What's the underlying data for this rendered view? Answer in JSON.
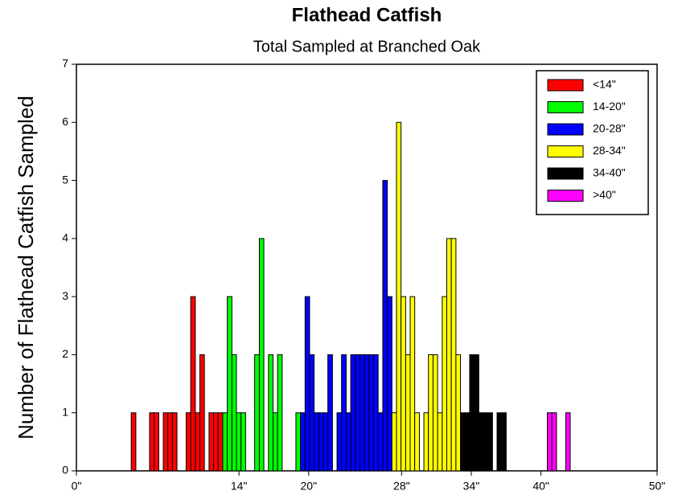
{
  "chart_data": {
    "type": "histogram",
    "title": "Flathead Catfish",
    "subtitle": "Total Sampled at Branched Oak",
    "y_label": "Number of Flathead Catfish Sampled",
    "xlim": [
      0,
      50
    ],
    "ylim": [
      0,
      7
    ],
    "xticks": [
      {
        "value": 0,
        "label": "0\""
      },
      {
        "value": 14,
        "label": "14\""
      },
      {
        "value": 20,
        "label": "20\""
      },
      {
        "value": 28,
        "label": "28\""
      },
      {
        "value": 34,
        "label": "34\""
      },
      {
        "value": 40,
        "label": "40\""
      },
      {
        "value": 50,
        "label": "50\""
      }
    ],
    "yticks": [
      0,
      1,
      2,
      3,
      4,
      5,
      6,
      7
    ],
    "legend": "top-right",
    "series": [
      {
        "name": "<14\"",
        "color": "#ff0000",
        "bins": [
          4.72,
          5.12,
          5.51,
          5.91,
          6.3,
          6.69,
          7.09,
          7.48,
          7.87,
          8.27,
          8.66,
          9.06,
          9.45,
          9.84,
          10.24,
          10.63,
          11.02,
          11.42,
          11.81,
          12.2,
          12.6
        ],
        "values": [
          1,
          0,
          0,
          0,
          1,
          1,
          0,
          1,
          1,
          1,
          0,
          0,
          1,
          3,
          1,
          2,
          0,
          1,
          1,
          1
        ]
      },
      {
        "name": "14-20\"",
        "color": "#00ff00",
        "bins": [
          12.6,
          12.99,
          13.39,
          13.78,
          14.17,
          14.57,
          14.96,
          15.35,
          15.75,
          16.14,
          16.54,
          16.93,
          17.32,
          17.72,
          18.11,
          18.5,
          18.9,
          19.29
        ],
        "values": [
          1,
          3,
          2,
          1,
          1,
          0,
          0,
          2,
          4,
          0,
          2,
          1,
          2,
          0,
          0,
          0,
          1
        ]
      },
      {
        "name": "20-28\"",
        "color": "#0000ff",
        "bins": [
          19.29,
          19.69,
          20.08,
          20.47,
          20.87,
          21.26,
          21.65,
          22.05,
          22.44,
          22.83,
          23.23,
          23.62,
          24.02,
          24.41,
          24.8,
          25.2,
          25.59,
          25.98,
          26.38,
          26.77,
          27.17
        ],
        "values": [
          1,
          3,
          2,
          1,
          1,
          1,
          2,
          0,
          1,
          2,
          1,
          2,
          2,
          2,
          2,
          2,
          2,
          1,
          5,
          3
        ]
      },
      {
        "name": "28-34\"",
        "color": "#ffff00",
        "bins": [
          27.17,
          27.56,
          27.95,
          28.35,
          28.74,
          29.13,
          29.53,
          29.92,
          30.31,
          30.71,
          31.1,
          31.5,
          31.89,
          32.28,
          32.68,
          33.07
        ],
        "values": [
          1,
          6,
          3,
          2,
          3,
          1,
          0,
          1,
          2,
          2,
          1,
          3,
          4,
          4,
          2
        ]
      },
      {
        "name": "34-40\"",
        "color": "#000000",
        "bins": [
          33.07,
          33.46,
          33.86,
          34.25,
          34.65,
          35.04,
          35.43,
          35.83,
          36.22,
          36.61,
          37.01
        ],
        "values": [
          1,
          1,
          2,
          2,
          1,
          1,
          1,
          0,
          1,
          1
        ]
      },
      {
        "name": ">40\"",
        "color": "#ff00ff",
        "bins": [
          40.55,
          40.94,
          41.34,
          41.73,
          42.13,
          42.52
        ],
        "values": [
          1,
          1,
          0,
          0,
          1
        ]
      }
    ]
  }
}
